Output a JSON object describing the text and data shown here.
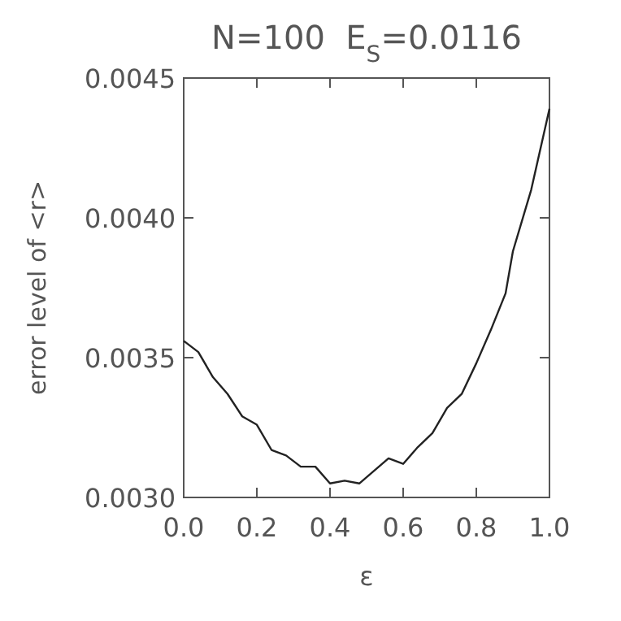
{
  "chart_data": {
    "type": "line",
    "title": "N=100  E$_{S}$=0.0116",
    "xlabel": "ε",
    "ylabel": "error level of <r>",
    "x": [
      0,
      0.04,
      0.08,
      0.12,
      0.16,
      0.2,
      0.24,
      0.28,
      0.32,
      0.36,
      0.4,
      0.44,
      0.48,
      0.56,
      0.6,
      0.64,
      0.68,
      0.72,
      0.76,
      0.8,
      0.84,
      0.88,
      0.9,
      0.95,
      1.0
    ],
    "series": [
      {
        "color": "#222222",
        "values": [
          0.00356,
          0.00352,
          0.00343,
          0.00337,
          0.00329,
          0.00326,
          0.00317,
          0.00315,
          0.00311,
          0.00311,
          0.00305,
          0.00306,
          0.00305,
          0.00314,
          0.00312,
          0.00318,
          0.00323,
          0.00332,
          0.00337,
          0.00348,
          0.0036,
          0.00373,
          0.00388,
          0.0041,
          0.00439
        ]
      }
    ],
    "xlim": [
      0,
      1
    ],
    "xticks": [
      {
        "value": 0,
        "label": "0.0"
      },
      {
        "value": 0.2,
        "label": "0.2"
      },
      {
        "value": 0.4,
        "label": "0.4"
      },
      {
        "value": 0.6,
        "label": "0.6"
      },
      {
        "value": 0.8,
        "label": "0.8"
      },
      {
        "value": 1,
        "label": "1.0"
      }
    ],
    "ylim": [
      0.003,
      0.0045
    ],
    "yticks": [
      {
        "value": 0.003,
        "label": "0.0030"
      },
      {
        "value": 0.0035,
        "label": "0.0035"
      },
      {
        "value": 0.004,
        "label": "0.0040"
      },
      {
        "value": 0.0045,
        "label": "0.0045"
      }
    ],
    "line_style": "solid"
  }
}
